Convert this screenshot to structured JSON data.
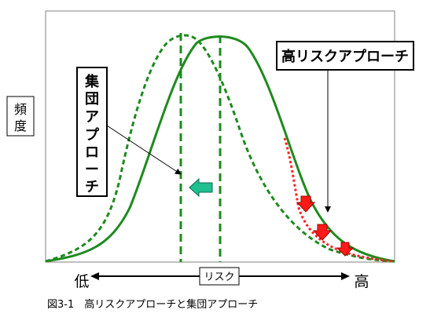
{
  "ylabel": [
    "頻",
    "度"
  ],
  "xaxis": {
    "label": "リスク",
    "low": "低",
    "high": "高"
  },
  "labels": {
    "high_risk": "高リスクアプローチ",
    "population": [
      "集",
      "団",
      "ア",
      "プ",
      "ロ",
      "ー",
      "チ"
    ]
  },
  "caption": "図3-1　高リスクアプローチと集団アプローチ",
  "colors": {
    "curve": "#1f8a1f",
    "high_risk_arrow": "#ff1a1a",
    "high_risk_curve": "#ff2020",
    "population_arrow": "#1fbf8f"
  },
  "icons": {
    "population_shift": "left-arrow-icon",
    "high_risk_shift": "down-arrow-icon"
  }
}
